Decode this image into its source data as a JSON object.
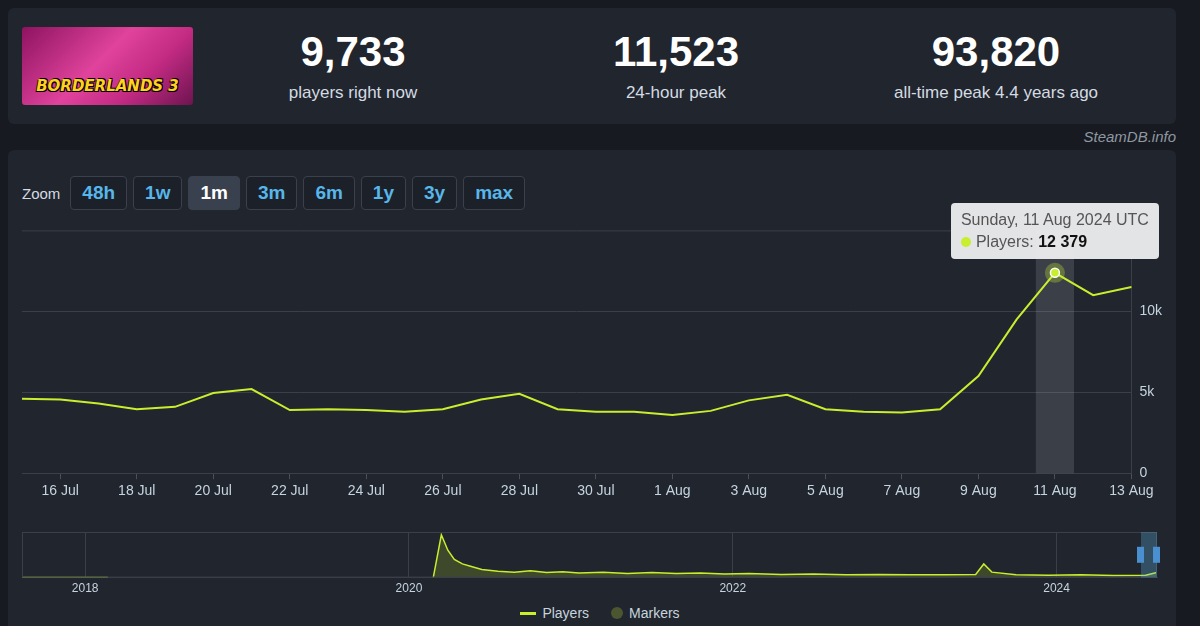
{
  "header": {
    "logo_text": "BORDERLANDS 3",
    "stats": [
      {
        "value": "9,733",
        "label": "players right now"
      },
      {
        "value": "11,523",
        "label": "24-hour peak"
      },
      {
        "value": "93,820",
        "label": "all-time peak 4.4 years ago"
      }
    ]
  },
  "watermark": "SteamDB.info",
  "zoom": {
    "label": "Zoom",
    "buttons": [
      "48h",
      "1w",
      "1m",
      "3m",
      "6m",
      "1y",
      "3y",
      "max"
    ],
    "active": "1m"
  },
  "chart_data": [
    {
      "type": "line",
      "categories": [
        null,
        "16 Jul",
        null,
        "18 Jul",
        null,
        "20 Jul",
        null,
        "22 Jul",
        null,
        "24 Jul",
        null,
        "26 Jul",
        null,
        "28 Jul",
        null,
        "30 Jul",
        null,
        "1 Aug",
        null,
        "3 Aug",
        null,
        "5 Aug",
        null,
        "7 Aug",
        null,
        "9 Aug",
        null,
        "11 Aug",
        null,
        "13 Aug"
      ],
      "series": [
        {
          "name": "Players",
          "color": "#c8ee2e",
          "values": [
            4600,
            4550,
            4300,
            3950,
            4100,
            4950,
            5200,
            3900,
            3950,
            3900,
            3800,
            3950,
            4550,
            4900,
            3950,
            3800,
            3800,
            3600,
            3850,
            4500,
            4850,
            3950,
            3800,
            3750,
            3950,
            6000,
            9500,
            12379,
            11000,
            11500
          ]
        }
      ],
      "ylim": [
        0,
        15000
      ],
      "yticks": [
        0,
        {
          "value": 5000,
          "label": "5k"
        },
        {
          "value": 10000,
          "label": "10k"
        }
      ],
      "grid": true,
      "legend": "bottom",
      "tooltip": {
        "category": "11 Aug",
        "title": "Sunday, 11 Aug 2024 UTC",
        "label": "Players:",
        "value": 12379,
        "value_label": "12 379"
      }
    },
    {
      "type": "area",
      "color": "#c8ee2e",
      "x": [
        2017.61,
        2018.14,
        2019.0,
        2020.15,
        2020.2,
        2020.24,
        2020.28,
        2020.33,
        2020.38,
        2020.45,
        2020.55,
        2020.65,
        2020.75,
        2020.85,
        2020.95,
        2021.05,
        2021.2,
        2021.35,
        2021.5,
        2021.65,
        2021.8,
        2021.95,
        2022.1,
        2022.3,
        2022.5,
        2022.7,
        2022.9,
        2023.1,
        2023.3,
        2023.5,
        2023.55,
        2023.6,
        2023.75,
        2023.95,
        2024.15,
        2024.35,
        2024.55,
        2024.62
      ],
      "values": [
        0,
        0,
        null,
        0,
        94000,
        60000,
        40000,
        30000,
        25000,
        18000,
        14000,
        12000,
        15000,
        11000,
        13000,
        10000,
        12000,
        9000,
        11000,
        9000,
        10000,
        8000,
        9000,
        7000,
        8000,
        6000,
        7000,
        6000,
        6500,
        7000,
        30000,
        12000,
        6000,
        5000,
        6000,
        4500,
        5000,
        11500
      ],
      "xlim": [
        2017.61,
        2024.62
      ],
      "xticks": [
        2018,
        2020,
        2022,
        2024
      ],
      "ylim": [
        0,
        100000
      ],
      "tick_labels": "x"
    }
  ],
  "legend_extra": {
    "name": "Markers",
    "color": "#4b5530"
  }
}
